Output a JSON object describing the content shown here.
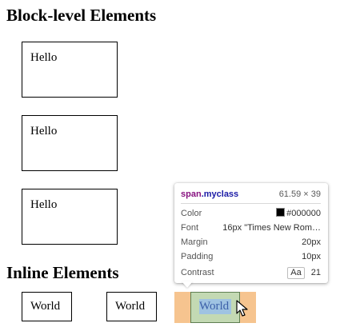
{
  "page": {
    "block_heading": "Block-level Elements",
    "inline_heading": "Inline Elements",
    "block_items": [
      "Hello",
      "Hello",
      "Hello"
    ],
    "inline_items": [
      "World",
      "World",
      "World"
    ]
  },
  "tooltip": {
    "tag": "span",
    "class_name": ".myclass",
    "size": "61.59 × 39",
    "rows": {
      "color_label": "Color",
      "color_value": "#000000",
      "font_label": "Font",
      "font_value": "16px \"Times New Rom…",
      "margin_label": "Margin",
      "margin_value": "20px",
      "padding_label": "Padding",
      "padding_value": "10px",
      "contrast_label": "Contrast",
      "contrast_badge": "Aa",
      "contrast_value": "21"
    }
  },
  "colors": {
    "margin_highlight": "#f6c48f",
    "border_highlight": "#c3d9b3",
    "content_highlight": "#9fc3e2",
    "selector_tag": "#881280",
    "selector_class": "#1a1aa6"
  },
  "icons": {
    "cursor": "mouse-pointer-icon",
    "swatch": "color-swatch-icon"
  }
}
